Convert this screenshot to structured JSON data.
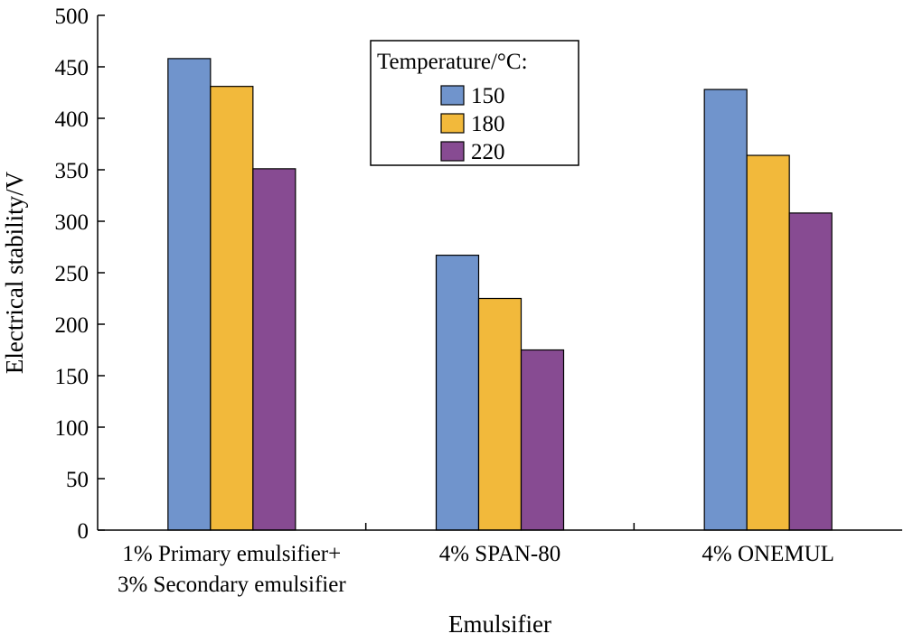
{
  "chart_data": {
    "type": "bar",
    "xlabel": "Emulsifier",
    "ylabel": "Electrical stability/V",
    "ylim": [
      0,
      500
    ],
    "yticks": [
      "0",
      "50",
      "100",
      "150",
      "200",
      "250",
      "300",
      "350",
      "400",
      "450",
      "500"
    ],
    "categories": [
      [
        "1% Primary emulsifier+",
        "3% Secondary emulsifier"
      ],
      [
        "4% SPAN-80"
      ],
      [
        "4% ONEMUL"
      ]
    ],
    "legend": {
      "title": "Temperature/°C:",
      "placement": "top-center"
    },
    "series": [
      {
        "name": "150",
        "color": "#7094cc",
        "values": [
          458,
          267,
          428
        ]
      },
      {
        "name": "180",
        "color": "#f2b93b",
        "values": [
          431,
          225,
          364
        ]
      },
      {
        "name": "220",
        "color": "#874b92",
        "values": [
          351,
          175,
          308
        ]
      }
    ],
    "grid": false
  }
}
